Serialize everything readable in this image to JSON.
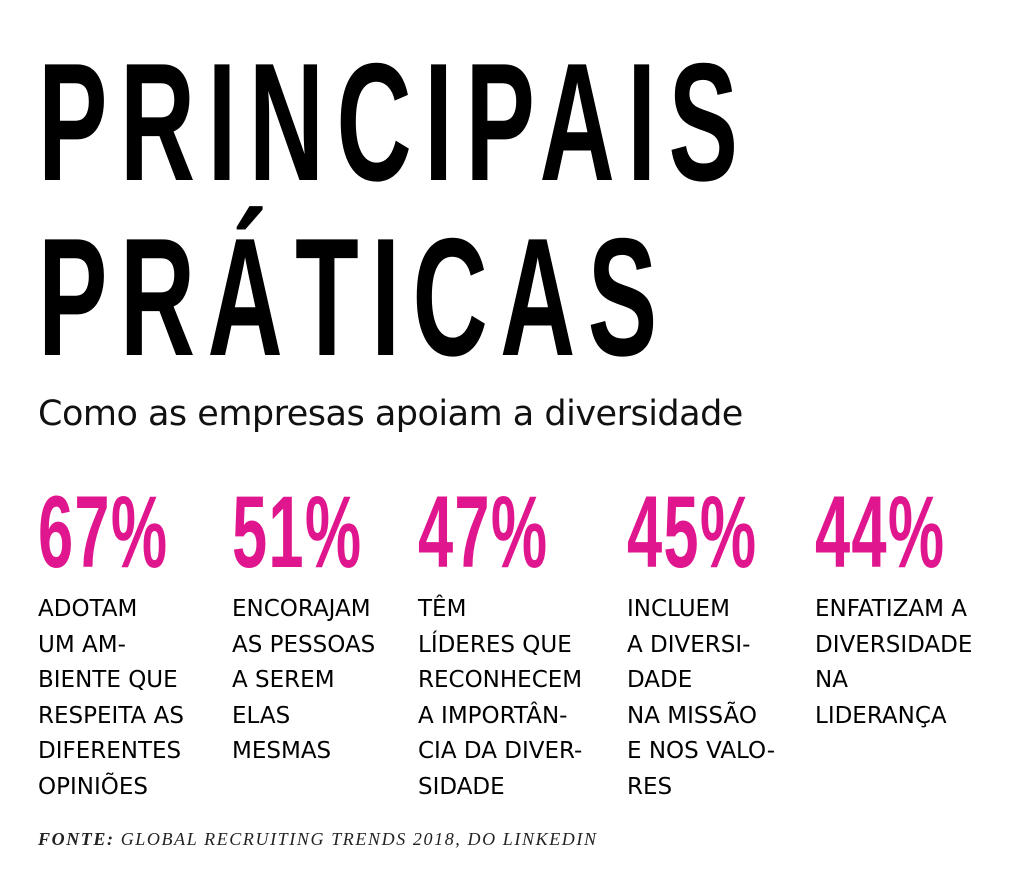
{
  "title_lines": [
    "PRINCIPAIS",
    "PRÁTICAS"
  ],
  "subtitle": "Como as empresas apoiam a diversidade",
  "chart_data": {
    "type": "table",
    "title": "PRINCIPAIS PRÁTICAS",
    "subtitle": "Como as empresas apoiam a diversidade",
    "unit": "%",
    "items": [
      {
        "value": 67,
        "label": "67%",
        "text": "ADOTAM\nUM AM-\nBIENTE QUE\nRESPEITA AS\nDIFERENTES\nOPINIÕES"
      },
      {
        "value": 51,
        "label": "51%",
        "text": "ENCORAJAM\nAS PESSOAS\nA SEREM\nELAS\nMESMAS"
      },
      {
        "value": 47,
        "label": "47%",
        "text": "TÊM\nLÍDERES QUE\nRECONHECEM\nA IMPORTÂN-\nCIA DA DIVER-\nSIDADE"
      },
      {
        "value": 45,
        "label": "45%",
        "text": "INCLUEM\nA DIVERSI-\nDADE\nNA MISSÃO\nE NOS VALO-\nRES"
      },
      {
        "value": 44,
        "label": "44%",
        "text": "ENFATIZAM A\nDIVERSIDADE\nNA\nLIDERANÇA"
      }
    ]
  },
  "source": {
    "label": "FONTE:",
    "text": " GLOBAL RECRUITING TRENDS 2018, DO LINKEDIN"
  },
  "colors": {
    "accent": "#e0168e",
    "text": "#000000",
    "background": "#ffffff"
  }
}
